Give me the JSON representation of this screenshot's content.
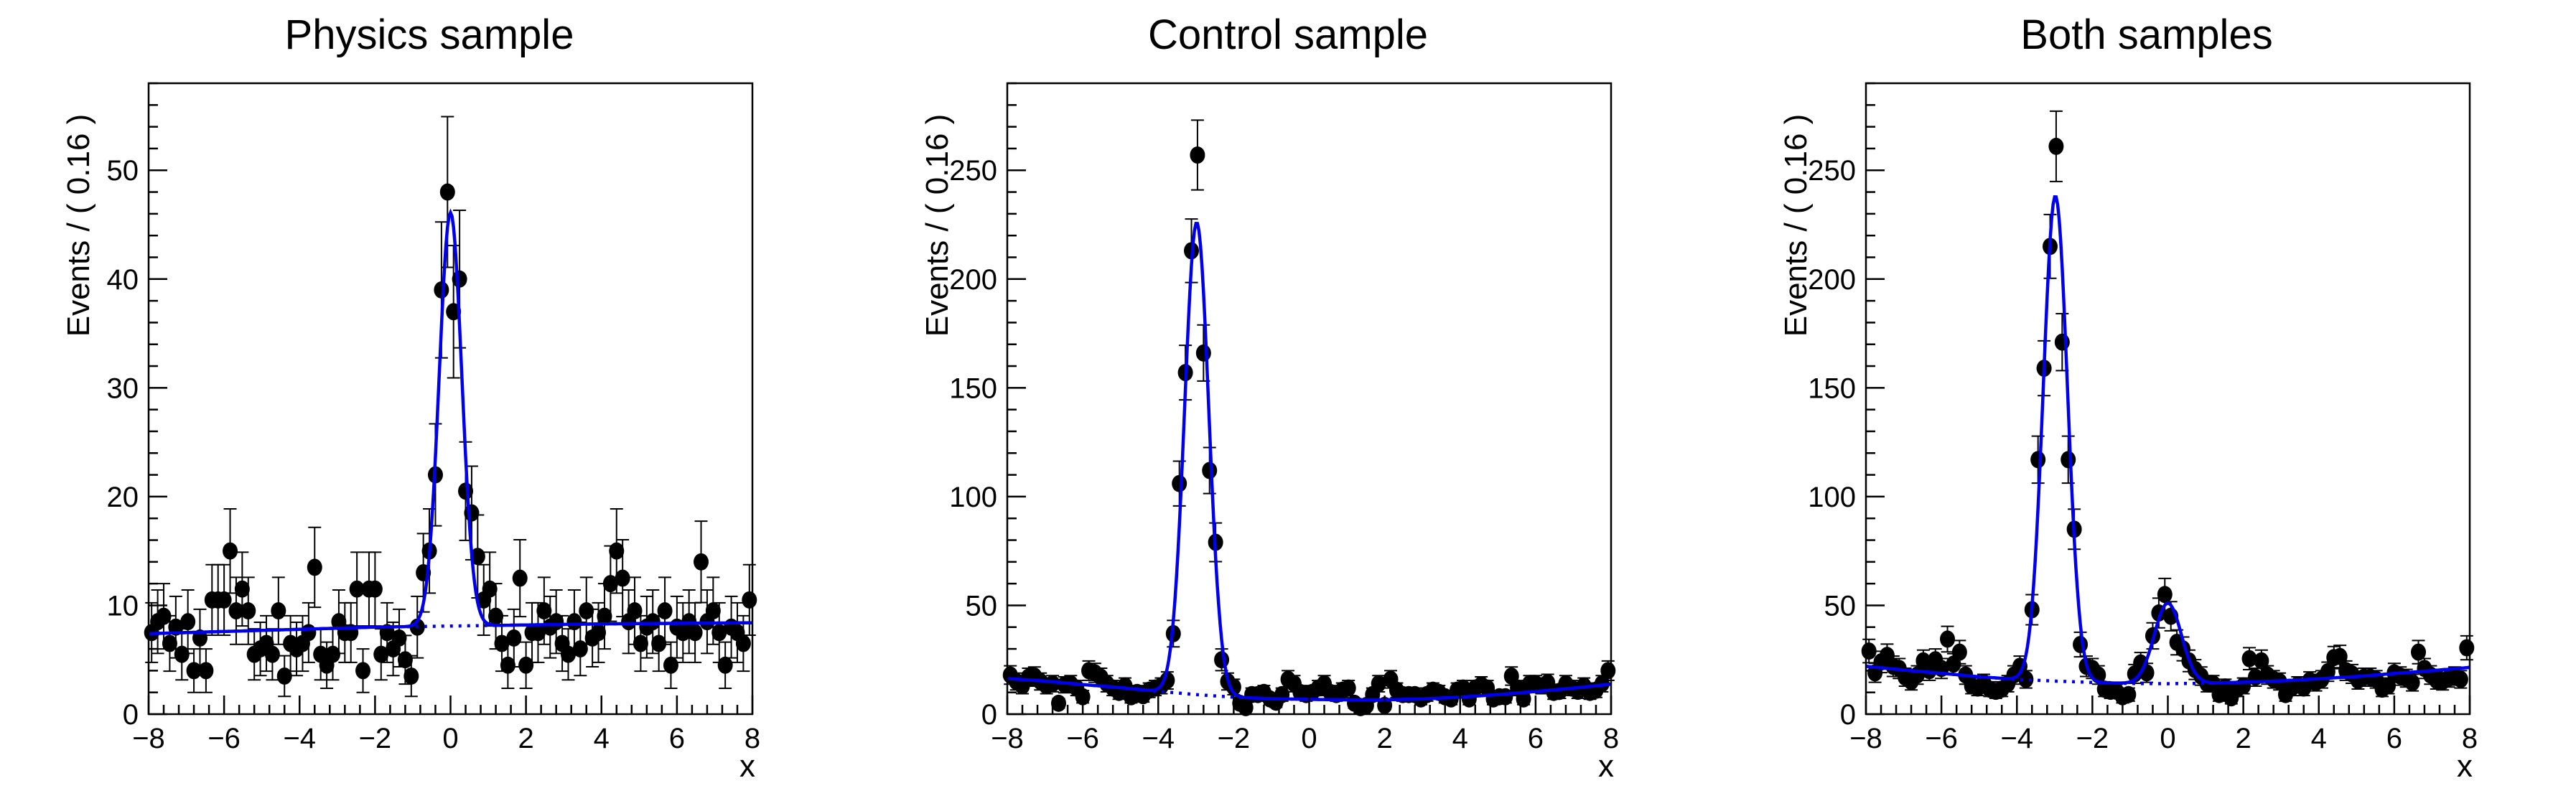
{
  "colors": {
    "curve_blue": "#0000ee",
    "marker_black": "#000000",
    "frame_black": "#000000",
    "background_white": "#ffffff"
  },
  "layout_text": {
    "note": "three RooFit-style pads side by side"
  },
  "panels": [
    {
      "title": "Physics sample",
      "ylabel": "Events / ( 0.16 )",
      "xlabel": "x"
    },
    {
      "title": "Control sample",
      "ylabel": "Events / ( 0.16 )",
      "xlabel": "x"
    },
    {
      "title": "Both samples",
      "ylabel": "Events / ( 0.16 )",
      "xlabel": "x"
    }
  ],
  "chart_data": [
    {
      "type": "scatter",
      "title": "Physics sample",
      "xlabel": "x",
      "ylabel": "Events / ( 0.16 )",
      "xlim": [
        -8,
        8
      ],
      "ylim": [
        0,
        58
      ],
      "grid": false,
      "legend": "none",
      "xticks": [
        -8,
        -6,
        -4,
        -2,
        0,
        2,
        4,
        6,
        8
      ],
      "x_minor_step": 0.4,
      "yticks": [
        0,
        10,
        20,
        30,
        40,
        50
      ],
      "y_minor_step": 2,
      "x_start": -7.92,
      "x_step": 0.16,
      "errors": "poisson_sqrt",
      "points": [
        7.5,
        8.5,
        9,
        6.5,
        8,
        5.5,
        8.5,
        4,
        7,
        4,
        10.5,
        10.5,
        10.5,
        15,
        9.5,
        11.5,
        9.5,
        5.5,
        6,
        6.5,
        5.5,
        9.5,
        3.5,
        6.5,
        6,
        6.5,
        7.5,
        13.5,
        5.5,
        4.5,
        5.5,
        8.5,
        7.5,
        7.5,
        11.5,
        4,
        11.5,
        11.5,
        5.5,
        7.5,
        6,
        7,
        5,
        3.5,
        8,
        13,
        15,
        22,
        39,
        48,
        37,
        40,
        20.5,
        18.5,
        14.5,
        10.5,
        11.5,
        9,
        6.5,
        4.5,
        7,
        12.5,
        4.5,
        7.5,
        7.5,
        9.5,
        8,
        8.5,
        6.5,
        5.5,
        8.5,
        6,
        9.5,
        7,
        7.5,
        9,
        12,
        15,
        12.5,
        8.5,
        9.5,
        6.5,
        8,
        8.5,
        6.5,
        9.5,
        4.5,
        8,
        7.5,
        8.5,
        7.5,
        14,
        8.5,
        9.5,
        7.5,
        4.5,
        8,
        7.5,
        6.5,
        10.5
      ],
      "fit": {
        "background_nodes": [
          [
            -8,
            7.4
          ],
          [
            -6,
            7.6
          ],
          [
            -4,
            7.8
          ],
          [
            -2,
            8.0
          ],
          [
            0,
            8.1
          ],
          [
            2,
            8.2
          ],
          [
            4,
            8.3
          ],
          [
            6,
            8.35
          ],
          [
            8,
            8.4
          ]
        ],
        "gaussians": [
          {
            "mean": 0.0,
            "sigma": 0.3,
            "amplitude": 38
          }
        ]
      }
    },
    {
      "type": "scatter",
      "title": "Control sample",
      "xlabel": "x",
      "ylabel": "Events / ( 0.16 )",
      "xlim": [
        -8,
        8
      ],
      "ylim": [
        0,
        290
      ],
      "grid": false,
      "legend": "none",
      "xticks": [
        -8,
        -6,
        -4,
        -2,
        0,
        2,
        4,
        6,
        8
      ],
      "x_minor_step": 0.4,
      "yticks": [
        0,
        50,
        100,
        150,
        200,
        250
      ],
      "y_minor_step": 10,
      "x_start": -7.92,
      "x_step": 0.16,
      "errors": "poisson_sqrt",
      "points": [
        18,
        15,
        13,
        17,
        17.5,
        15,
        13,
        14,
        5,
        13.5,
        14,
        12,
        8,
        20,
        19,
        17,
        14,
        12,
        10,
        13,
        8,
        10,
        8.5,
        11,
        12,
        13,
        15.5,
        37,
        106,
        157,
        213,
        257,
        166,
        112,
        79,
        25,
        15,
        12.5,
        5,
        3,
        9,
        9,
        10,
        7,
        5.5,
        9,
        16,
        14,
        10,
        9,
        10,
        12,
        14,
        10,
        9,
        11,
        12,
        5,
        3,
        4,
        9,
        14,
        4,
        16,
        11,
        9,
        9,
        9,
        7,
        9,
        11,
        10,
        8,
        7,
        11,
        12,
        7,
        12,
        13.5,
        12,
        7,
        8,
        8,
        17.5,
        12,
        7,
        14,
        14,
        13,
        14.5,
        10,
        10.5,
        14,
        12,
        10.5,
        13,
        10,
        11,
        14,
        20
      ],
      "fit": {
        "background_nodes": [
          [
            -8,
            16.4
          ],
          [
            -7,
            15.2
          ],
          [
            -6,
            13.6
          ],
          [
            -5,
            12.2
          ],
          [
            -4,
            10.5
          ],
          [
            -3,
            9.0
          ],
          [
            -2,
            7.8
          ],
          [
            -1,
            7.1
          ],
          [
            0,
            6.8
          ],
          [
            1,
            6.6
          ],
          [
            2,
            6.6
          ],
          [
            3,
            7.0
          ],
          [
            4,
            7.8
          ],
          [
            5,
            9.0
          ],
          [
            6,
            10.4
          ],
          [
            7,
            12.0
          ],
          [
            8,
            13.8
          ]
        ],
        "gaussians": [
          {
            "mean": -2.98,
            "sigma": 0.32,
            "amplitude": 217
          }
        ]
      }
    },
    {
      "type": "scatter",
      "title": "Both samples",
      "xlabel": "x",
      "ylabel": "Events / ( 0.16 )",
      "xlim": [
        -8,
        8
      ],
      "ylim": [
        0,
        290
      ],
      "grid": false,
      "legend": "none",
      "xticks": [
        -8,
        -6,
        -4,
        -2,
        0,
        2,
        4,
        6,
        8
      ],
      "x_minor_step": 0.4,
      "yticks": [
        0,
        50,
        100,
        150,
        200,
        250
      ],
      "y_minor_step": 10,
      "x_start": -7.92,
      "x_step": 0.16,
      "errors": "poisson_sqrt",
      "points": [
        29,
        19,
        24,
        27,
        22,
        21,
        17,
        15,
        18,
        24.5,
        20,
        25,
        21,
        34.5,
        23,
        28.5,
        18,
        13,
        12,
        14.5,
        11.5,
        10.5,
        11.5,
        14,
        18,
        22,
        16,
        48,
        117,
        159,
        215,
        261,
        171,
        117,
        85,
        32,
        22,
        21,
        18,
        11.5,
        10.5,
        10.5,
        8,
        9,
        18.5,
        23.5,
        19,
        36,
        46.5,
        55,
        45,
        33,
        30,
        24.5,
        20.5,
        17.5,
        14,
        14,
        9,
        12.5,
        7.5,
        11.5,
        13,
        25.5,
        17,
        24.5,
        18,
        16,
        15,
        9,
        12,
        13.5,
        12,
        15.5,
        14.5,
        16,
        19.5,
        26,
        26.5,
        20,
        18.5,
        15.5,
        17,
        17,
        16,
        11.5,
        13,
        19,
        17.5,
        16.5,
        14.5,
        28.5,
        21,
        18,
        15.5,
        15,
        16.5,
        17.5,
        16,
        30.5
      ],
      "fit": {
        "background_nodes": [
          [
            -8,
            22
          ],
          [
            -7,
            20.3
          ],
          [
            -6,
            18.8
          ],
          [
            -5,
            17.2
          ],
          [
            -4,
            16.0
          ],
          [
            -3,
            15.2
          ],
          [
            -2,
            14.6
          ],
          [
            -1,
            14.1
          ],
          [
            0,
            14.0
          ],
          [
            1,
            14.2
          ],
          [
            2,
            14.7
          ],
          [
            3,
            15.3
          ],
          [
            4,
            16.3
          ],
          [
            5,
            17.3
          ],
          [
            6,
            18.7
          ],
          [
            7,
            20.0
          ],
          [
            8,
            21.5
          ]
        ],
        "gaussians": [
          {
            "mean": -2.98,
            "sigma": 0.32,
            "amplitude": 223
          },
          {
            "mean": 0.0,
            "sigma": 0.36,
            "amplitude": 37
          }
        ]
      }
    }
  ]
}
